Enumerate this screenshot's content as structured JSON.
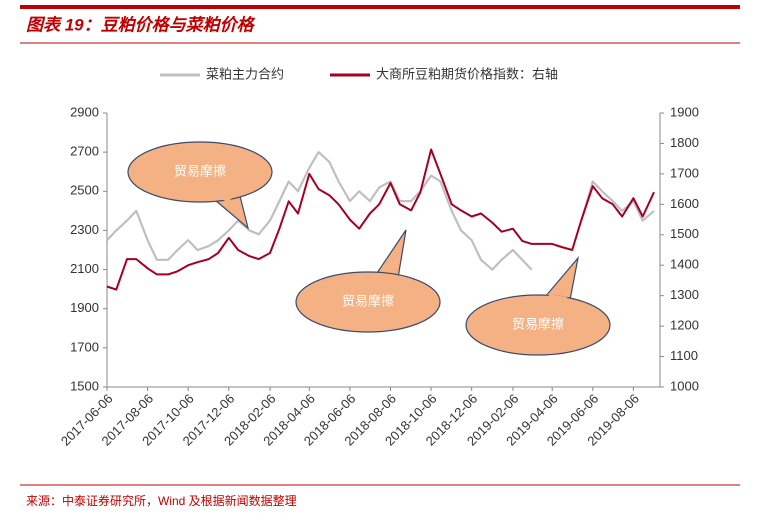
{
  "title": "图表 19：豆粕价格与菜粕价格",
  "source": "来源：中泰证券研究所，Wind 及根据新闻数据整理",
  "chart_data": {
    "type": "line",
    "x": [
      "2017-06-06",
      "2017-06-20",
      "2017-07-06",
      "2017-07-20",
      "2017-08-06",
      "2017-08-20",
      "2017-09-06",
      "2017-09-20",
      "2017-10-06",
      "2017-10-20",
      "2017-11-06",
      "2017-11-20",
      "2017-12-06",
      "2017-12-20",
      "2018-01-06",
      "2018-01-20",
      "2018-02-06",
      "2018-02-20",
      "2018-03-06",
      "2018-03-20",
      "2018-04-06",
      "2018-04-20",
      "2018-05-06",
      "2018-05-20",
      "2018-06-06",
      "2018-06-20",
      "2018-07-06",
      "2018-07-20",
      "2018-08-06",
      "2018-08-20",
      "2018-09-06",
      "2018-09-20",
      "2018-10-06",
      "2018-10-20",
      "2018-11-06",
      "2018-11-20",
      "2018-12-06",
      "2018-12-20",
      "2019-01-06",
      "2019-01-20",
      "2019-02-06",
      "2019-02-20",
      "2019-03-06",
      "2019-03-20",
      "2019-04-06",
      "2019-04-20",
      "2019-05-06",
      "2019-05-20",
      "2019-06-06",
      "2019-06-20",
      "2019-07-06",
      "2019-07-20",
      "2019-08-06",
      "2019-08-20",
      "2019-09-06"
    ],
    "series": [
      {
        "name": "菜粕主力合约",
        "color": "#bfbfbf",
        "axis": "y",
        "values": [
          2250,
          2300,
          2350,
          2400,
          2250,
          2150,
          2150,
          2200,
          2250,
          2200,
          2220,
          2250,
          2300,
          2350,
          2300,
          2280,
          2350,
          2450,
          2550,
          2500,
          2620,
          2700,
          2650,
          2550,
          2450,
          2500,
          2450,
          2520,
          2550,
          2450,
          2450,
          2500,
          2580,
          2550,
          2400,
          2300,
          2250,
          2150,
          2100,
          2150,
          2200,
          2150,
          2100,
          null,
          null,
          null,
          null,
          2350,
          2550,
          2500,
          2450,
          2400,
          2450,
          2350,
          2400
        ]
      },
      {
        "name": "大商所豆粕期货价格指数：右轴",
        "color": "#a50021",
        "axis": "y2",
        "values": [
          1330,
          1320,
          1420,
          1420,
          1390,
          1370,
          1370,
          1380,
          1400,
          1410,
          1420,
          1440,
          1490,
          1450,
          1430,
          1420,
          1440,
          1520,
          1610,
          1570,
          1700,
          1650,
          1630,
          1600,
          1550,
          1520,
          1570,
          1600,
          1670,
          1600,
          1580,
          1640,
          1780,
          1700,
          1600,
          1580,
          1560,
          1570,
          1540,
          1510,
          1520,
          1480,
          1470,
          1470,
          1470,
          1460,
          1450,
          1550,
          1660,
          1620,
          1600,
          1560,
          1620,
          1560,
          1640
        ]
      }
    ],
    "xlim": [
      "2017-06-06",
      "2019-09-15"
    ],
    "xticks": [
      "2017-06-06",
      "2017-08-06",
      "2017-10-06",
      "2017-12-06",
      "2018-02-06",
      "2018-04-06",
      "2018-06-06",
      "2018-08-06",
      "2018-10-06",
      "2018-12-06",
      "2019-02-06",
      "2019-04-06",
      "2019-06-06",
      "2019-08-06"
    ],
    "ylim": [
      1500,
      2900
    ],
    "yticks": [
      1500,
      1700,
      1900,
      2100,
      2300,
      2500,
      2700,
      2900
    ],
    "y2lim": [
      1000,
      1900
    ],
    "y2ticks": [
      1000,
      1100,
      1200,
      1300,
      1400,
      1500,
      1600,
      1700,
      1800,
      1900
    ],
    "legend": "top",
    "annotations": [
      "贸易摩擦",
      "贸易摩擦",
      "贸易摩擦"
    ]
  }
}
